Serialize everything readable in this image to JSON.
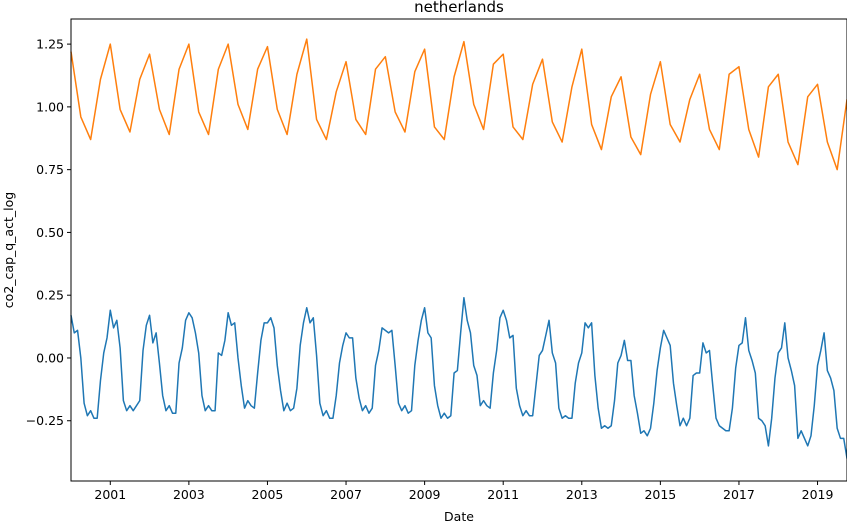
{
  "chart_data": {
    "type": "line",
    "title": "netherlands",
    "xlabel": "Date",
    "ylabel": "co2_cap_q_act_log",
    "xlim": [
      "2000-01",
      "2019-10"
    ],
    "ylim": [
      -0.49,
      1.35
    ],
    "x_tick_labels": [
      "2001",
      "2003",
      "2005",
      "2007",
      "2009",
      "2011",
      "2013",
      "2015",
      "2017",
      "2019"
    ],
    "y_ticks": [
      -0.25,
      0.0,
      0.25,
      0.5,
      0.75,
      1.0,
      1.25
    ],
    "y_tick_labels": [
      "−0.25",
      "0.00",
      "0.25",
      "0.50",
      "0.75",
      "1.00",
      "1.25"
    ],
    "grid": false,
    "legend": "none",
    "series": [
      {
        "color": "#1f77b4",
        "frequency": "monthly",
        "start": "2000-01",
        "values": [
          0.17,
          0.1,
          0.11,
          0.0,
          -0.18,
          -0.23,
          -0.21,
          -0.24,
          -0.24,
          -0.09,
          0.02,
          0.08,
          0.19,
          0.12,
          0.15,
          0.04,
          -0.17,
          -0.21,
          -0.19,
          -0.21,
          -0.19,
          -0.17,
          0.03,
          0.13,
          0.17,
          0.06,
          0.1,
          -0.02,
          -0.15,
          -0.21,
          -0.19,
          -0.22,
          -0.22,
          -0.02,
          0.04,
          0.15,
          0.18,
          0.16,
          0.1,
          0.02,
          -0.15,
          -0.21,
          -0.19,
          -0.21,
          -0.21,
          0.02,
          0.01,
          0.07,
          0.18,
          0.13,
          0.14,
          0.0,
          -0.11,
          -0.2,
          -0.17,
          -0.19,
          -0.2,
          -0.06,
          0.07,
          0.14,
          0.14,
          0.16,
          0.12,
          -0.03,
          -0.13,
          -0.21,
          -0.18,
          -0.21,
          -0.2,
          -0.12,
          0.05,
          0.14,
          0.2,
          0.14,
          0.16,
          0.01,
          -0.18,
          -0.23,
          -0.21,
          -0.24,
          -0.24,
          -0.15,
          -0.02,
          0.05,
          0.1,
          0.08,
          0.08,
          -0.08,
          -0.16,
          -0.21,
          -0.19,
          -0.22,
          -0.2,
          -0.03,
          0.03,
          0.12,
          0.11,
          0.1,
          0.11,
          -0.03,
          -0.18,
          -0.21,
          -0.19,
          -0.22,
          -0.21,
          -0.03,
          0.07,
          0.15,
          0.2,
          0.1,
          0.08,
          -0.11,
          -0.19,
          -0.24,
          -0.22,
          -0.24,
          -0.23,
          -0.06,
          -0.05,
          0.1,
          0.24,
          0.15,
          0.1,
          -0.03,
          -0.07,
          -0.19,
          -0.17,
          -0.19,
          -0.2,
          -0.06,
          0.03,
          0.16,
          0.19,
          0.15,
          0.08,
          0.09,
          -0.12,
          -0.19,
          -0.23,
          -0.21,
          -0.23,
          -0.23,
          -0.11,
          0.01,
          0.03,
          0.09,
          0.15,
          0.02,
          -0.02,
          -0.2,
          -0.24,
          -0.23,
          -0.24,
          -0.24,
          -0.1,
          -0.02,
          0.02,
          0.14,
          0.12,
          0.14,
          -0.07,
          -0.2,
          -0.28,
          -0.27,
          -0.28,
          -0.27,
          -0.17,
          -0.02,
          0.01,
          0.07,
          -0.01,
          -0.01,
          -0.15,
          -0.22,
          -0.3,
          -0.29,
          -0.31,
          -0.28,
          -0.18,
          -0.05,
          0.04,
          0.11,
          0.08,
          0.05,
          -0.1,
          -0.19,
          -0.27,
          -0.24,
          -0.27,
          -0.24,
          -0.07,
          -0.06,
          -0.06,
          0.06,
          0.02,
          0.03,
          -0.11,
          -0.24,
          -0.27,
          -0.28,
          -0.29,
          -0.29,
          -0.2,
          -0.04,
          0.05,
          0.06,
          0.16,
          0.03,
          -0.01,
          -0.06,
          -0.24,
          -0.25,
          -0.27,
          -0.35,
          -0.24,
          -0.08,
          0.02,
          0.04,
          0.14,
          0.0,
          -0.05,
          -0.11,
          -0.32,
          -0.29,
          -0.32,
          -0.35,
          -0.31,
          -0.19,
          -0.03,
          0.03,
          0.1,
          -0.05,
          -0.08,
          -0.13,
          -0.28,
          -0.32,
          -0.32,
          -0.4,
          -0.33,
          -0.22
        ]
      },
      {
        "color": "#ff7f0e",
        "frequency": "quarterly",
        "start": "2000-Q1",
        "values": [
          1.22,
          0.96,
          0.87,
          1.11,
          1.25,
          0.99,
          0.9,
          1.11,
          1.21,
          0.99,
          0.89,
          1.15,
          1.25,
          0.98,
          0.89,
          1.15,
          1.25,
          1.01,
          0.91,
          1.15,
          1.24,
          0.99,
          0.89,
          1.13,
          1.27,
          0.95,
          0.87,
          1.06,
          1.18,
          0.95,
          0.89,
          1.15,
          1.2,
          0.98,
          0.9,
          1.14,
          1.23,
          0.92,
          0.87,
          1.12,
          1.26,
          1.01,
          0.91,
          1.17,
          1.21,
          0.92,
          0.87,
          1.09,
          1.19,
          0.94,
          0.86,
          1.08,
          1.23,
          0.93,
          0.83,
          1.04,
          1.12,
          0.88,
          0.81,
          1.05,
          1.18,
          0.93,
          0.86,
          1.03,
          1.13,
          0.91,
          0.83,
          1.13,
          1.16,
          0.91,
          0.8,
          1.08,
          1.13,
          0.86,
          0.77,
          1.04,
          1.09,
          0.86,
          0.75,
          1.03
        ]
      }
    ]
  }
}
